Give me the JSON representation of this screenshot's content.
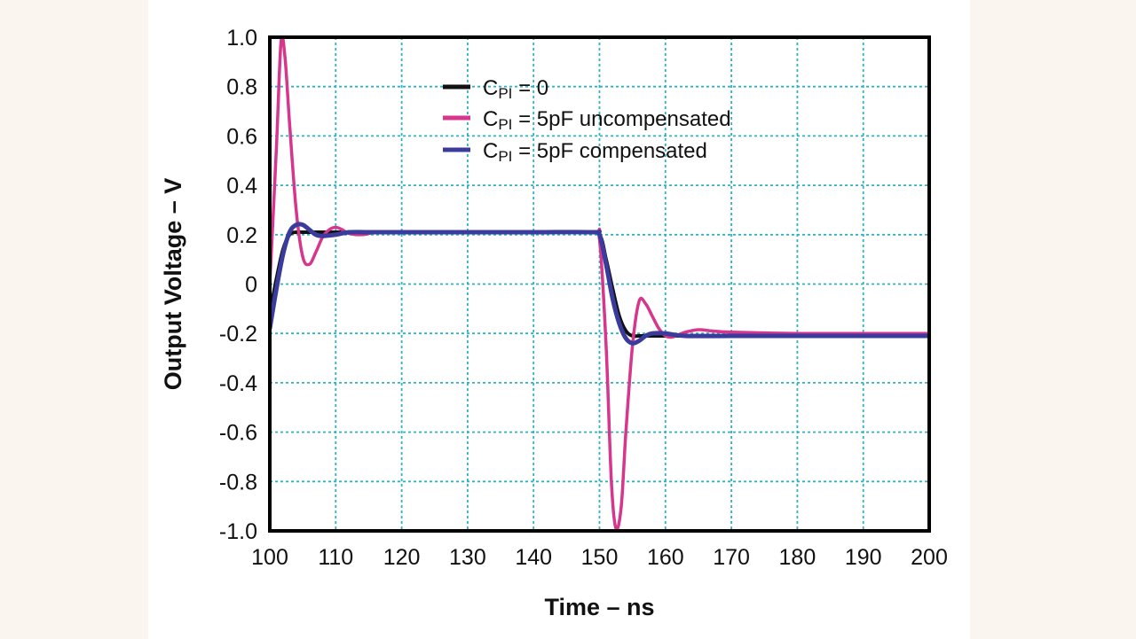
{
  "chart_data": {
    "type": "line",
    "title": "",
    "xlabel": "Time – ns",
    "ylabel": "Output Voltage – V",
    "xlim": [
      100,
      200
    ],
    "ylim": [
      -1.0,
      1.0
    ],
    "x_ticks": [
      100,
      110,
      120,
      130,
      140,
      150,
      160,
      170,
      180,
      190,
      200
    ],
    "y_ticks": [
      1.0,
      0.8,
      0.6,
      0.4,
      0.2,
      0,
      -0.2,
      -0.4,
      -0.6,
      -0.8,
      -1.0
    ],
    "x_tick_labels": [
      "100",
      "110",
      "120",
      "130",
      "140",
      "150",
      "160",
      "170",
      "180",
      "190",
      "200"
    ],
    "y_tick_labels": [
      "1.0",
      "0.8",
      "0.6",
      "0.4",
      "0.2",
      "0",
      "-0.2",
      "-0.4",
      "-0.6",
      "-0.8",
      "-1.0"
    ],
    "grid": true,
    "legend_position": "top-center",
    "series": [
      {
        "name": "CPI = 0",
        "legend_prefix": "C",
        "legend_sub": "PI",
        "legend_suffix": " = 0",
        "color": "#111111",
        "x": [
          100,
          101,
          102,
          103,
          104,
          105,
          106,
          108,
          110,
          112,
          115,
          120,
          130,
          140,
          148,
          150,
          151,
          152,
          153,
          154,
          155,
          156,
          158,
          160,
          165,
          170,
          180,
          190,
          200
        ],
        "y": [
          -0.12,
          0.02,
          0.14,
          0.2,
          0.21,
          0.21,
          0.21,
          0.21,
          0.21,
          0.21,
          0.21,
          0.21,
          0.21,
          0.21,
          0.21,
          0.2,
          0.1,
          -0.02,
          -0.13,
          -0.19,
          -0.21,
          -0.21,
          -0.21,
          -0.21,
          -0.21,
          -0.21,
          -0.21,
          -0.21,
          -0.21
        ]
      },
      {
        "name": "CPI = 5pF uncompensated",
        "legend_prefix": "C",
        "legend_sub": "PI",
        "legend_suffix": " = 5pF uncompensated",
        "color": "#d6368c",
        "x": [
          100,
          101,
          101.7,
          102.3,
          103,
          104,
          105,
          106,
          107,
          108,
          109,
          110,
          111,
          112,
          114,
          116,
          118,
          120,
          130,
          140,
          149,
          150,
          151,
          151.8,
          152.5,
          153.3,
          154,
          155,
          156,
          157,
          158,
          159,
          160,
          161,
          162,
          163,
          165,
          167,
          170,
          180,
          190,
          200
        ],
        "y": [
          0.0,
          0.55,
          0.98,
          0.92,
          0.65,
          0.3,
          0.11,
          0.08,
          0.13,
          0.19,
          0.22,
          0.23,
          0.22,
          0.205,
          0.2,
          0.21,
          0.21,
          0.21,
          0.21,
          0.21,
          0.21,
          0.18,
          -0.25,
          -0.8,
          -0.99,
          -0.9,
          -0.6,
          -0.25,
          -0.07,
          -0.08,
          -0.13,
          -0.18,
          -0.21,
          -0.215,
          -0.205,
          -0.195,
          -0.185,
          -0.19,
          -0.195,
          -0.2,
          -0.2,
          -0.2
        ]
      },
      {
        "name": "CPI = 5pF compensated",
        "legend_prefix": "C",
        "legend_sub": "PI",
        "legend_suffix": " = 5pF compensated",
        "color": "#3b3b9e",
        "x": [
          100,
          101,
          102,
          103,
          104,
          105,
          106,
          107,
          108,
          110,
          112,
          115,
          120,
          130,
          140,
          149,
          150,
          151,
          152,
          153,
          154,
          155,
          156,
          157,
          158,
          160,
          163,
          170,
          180,
          190,
          200
        ],
        "y": [
          -0.18,
          -0.02,
          0.12,
          0.21,
          0.24,
          0.24,
          0.22,
          0.2,
          0.195,
          0.2,
          0.21,
          0.21,
          0.21,
          0.21,
          0.21,
          0.21,
          0.2,
          0.08,
          -0.06,
          -0.16,
          -0.22,
          -0.24,
          -0.23,
          -0.21,
          -0.2,
          -0.2,
          -0.21,
          -0.21,
          -0.21,
          -0.21,
          -0.21
        ]
      }
    ]
  }
}
